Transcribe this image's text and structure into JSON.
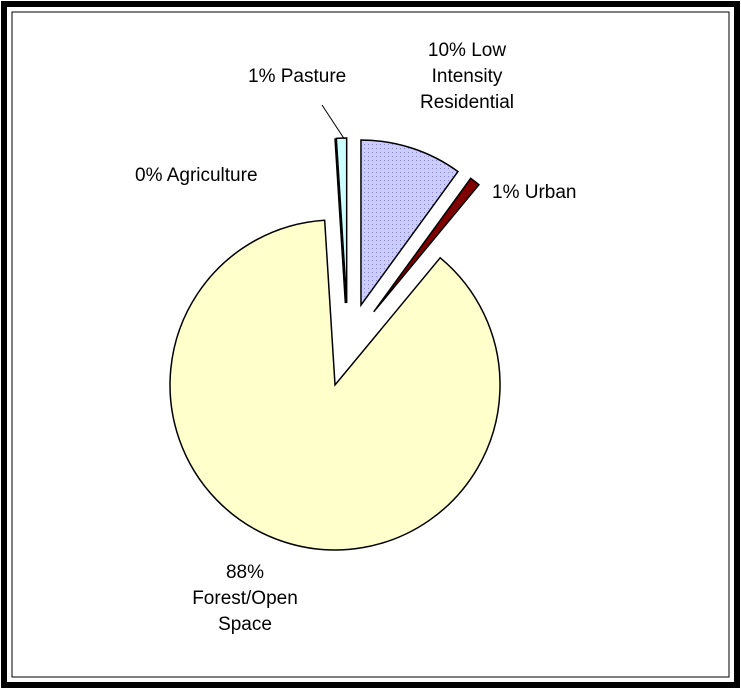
{
  "chart_data": {
    "type": "pie",
    "categories": [
      "Low Intensity Residential",
      "Urban",
      "Forest/Open Space",
      "Agriculture",
      "Pasture"
    ],
    "values": [
      10,
      1,
      88,
      0,
      1
    ],
    "value_labels": [
      "10%",
      "1%",
      "88%",
      "0%",
      "1%"
    ],
    "colors": [
      "#ccccff",
      "#800000",
      "#ffffcc",
      "#ffffff",
      "#ccffff"
    ]
  }
}
